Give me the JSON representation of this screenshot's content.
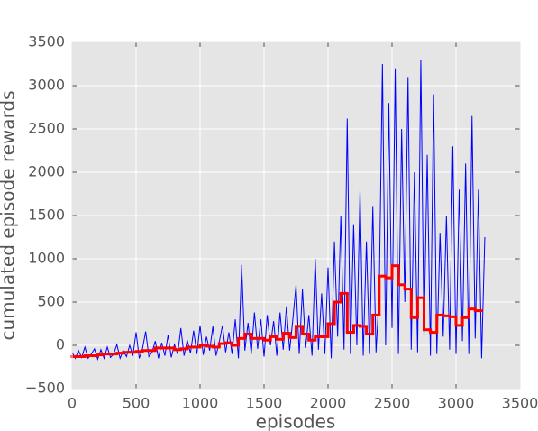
{
  "chart_data": {
    "type": "line",
    "x_label": "episodes",
    "y_label": "cumulated episode rewards",
    "xlim": [
      0,
      3500
    ],
    "xticks": [
      0,
      500,
      1000,
      1500,
      2000,
      2500,
      3000,
      3500
    ],
    "ylim": [
      -500,
      3500
    ],
    "yticks": [
      {
        "value": -500,
        "label": "−500"
      },
      0,
      500,
      1000,
      1500,
      2000,
      2500,
      3000,
      3500
    ],
    "grid": true,
    "series": [
      {
        "color": "#0000ff",
        "style": "line",
        "x": [
          0,
          25,
          50,
          75,
          100,
          125,
          150,
          175,
          200,
          225,
          250,
          275,
          300,
          325,
          350,
          375,
          400,
          425,
          450,
          475,
          500,
          525,
          550,
          575,
          600,
          625,
          650,
          675,
          700,
          725,
          750,
          775,
          800,
          825,
          850,
          875,
          900,
          925,
          950,
          975,
          1000,
          1025,
          1050,
          1075,
          1100,
          1125,
          1150,
          1175,
          1200,
          1225,
          1250,
          1275,
          1300,
          1325,
          1350,
          1375,
          1400,
          1425,
          1450,
          1475,
          1500,
          1525,
          1550,
          1575,
          1600,
          1625,
          1650,
          1675,
          1700,
          1725,
          1750,
          1775,
          1800,
          1825,
          1850,
          1875,
          1900,
          1925,
          1950,
          1975,
          2000,
          2025,
          2050,
          2075,
          2100,
          2125,
          2150,
          2175,
          2200,
          2225,
          2250,
          2275,
          2300,
          2325,
          2350,
          2375,
          2400,
          2425,
          2450,
          2475,
          2500,
          2525,
          2550,
          2575,
          2600,
          2625,
          2650,
          2675,
          2700,
          2725,
          2750,
          2775,
          2800,
          2825,
          2850,
          2875,
          2900,
          2925,
          2950,
          2975,
          3000,
          3025,
          3050,
          3075,
          3100,
          3125,
          3150,
          3175,
          3200,
          3225
        ],
        "values": [
          -80,
          -150,
          -60,
          -140,
          -20,
          -150,
          -100,
          -40,
          -160,
          -50,
          -150,
          -20,
          -140,
          -100,
          10,
          -150,
          -60,
          -130,
          0,
          -120,
          150,
          -150,
          -40,
          160,
          -130,
          -80,
          50,
          -150,
          30,
          -120,
          120,
          -140,
          10,
          -100,
          200,
          -120,
          60,
          -90,
          170,
          -100,
          230,
          -110,
          100,
          -60,
          220,
          -120,
          40,
          230,
          -80,
          150,
          -100,
          300,
          -150,
          930,
          -60,
          260,
          -100,
          380,
          -40,
          300,
          -130,
          350,
          0,
          280,
          -120,
          380,
          -50,
          450,
          -60,
          300,
          700,
          -100,
          650,
          -30,
          350,
          -120,
          1000,
          -50,
          600,
          -100,
          900,
          -150,
          1200,
          100,
          1500,
          -50,
          2620,
          -100,
          1400,
          0,
          1800,
          -120,
          1200,
          -100,
          1600,
          -80,
          600,
          3250,
          0,
          2800,
          200,
          3200,
          -100,
          2500,
          500,
          3100,
          -50,
          2000,
          -80,
          3300,
          100,
          2200,
          -120,
          2900,
          -100,
          1300,
          100,
          1500,
          -50,
          2300,
          -100,
          1800,
          50,
          2100,
          -100,
          2650,
          80,
          1800,
          -150,
          1250
        ]
      },
      {
        "color": "#ff0000",
        "style": "step",
        "x": [
          0,
          50,
          100,
          150,
          200,
          250,
          300,
          350,
          400,
          450,
          500,
          550,
          600,
          650,
          700,
          750,
          800,
          850,
          900,
          950,
          1000,
          1050,
          1100,
          1150,
          1200,
          1250,
          1300,
          1350,
          1400,
          1450,
          1500,
          1550,
          1600,
          1650,
          1700,
          1750,
          1800,
          1850,
          1900,
          1950,
          2000,
          2050,
          2100,
          2150,
          2200,
          2250,
          2300,
          2350,
          2400,
          2450,
          2500,
          2550,
          2600,
          2650,
          2700,
          2750,
          2800,
          2850,
          2900,
          2950,
          3000,
          3050,
          3100,
          3150
        ],
        "values": [
          -130,
          -130,
          -120,
          -120,
          -110,
          -100,
          -100,
          -90,
          -80,
          -80,
          -70,
          -60,
          -60,
          -30,
          -30,
          -30,
          -50,
          -40,
          -20,
          -20,
          0,
          -10,
          -20,
          20,
          30,
          0,
          80,
          130,
          80,
          80,
          60,
          100,
          70,
          140,
          90,
          220,
          130,
          60,
          100,
          100,
          250,
          500,
          600,
          150,
          230,
          220,
          130,
          350,
          800,
          780,
          920,
          700,
          650,
          320,
          550,
          180,
          150,
          350,
          340,
          330,
          230,
          320,
          420,
          400
        ]
      }
    ]
  }
}
